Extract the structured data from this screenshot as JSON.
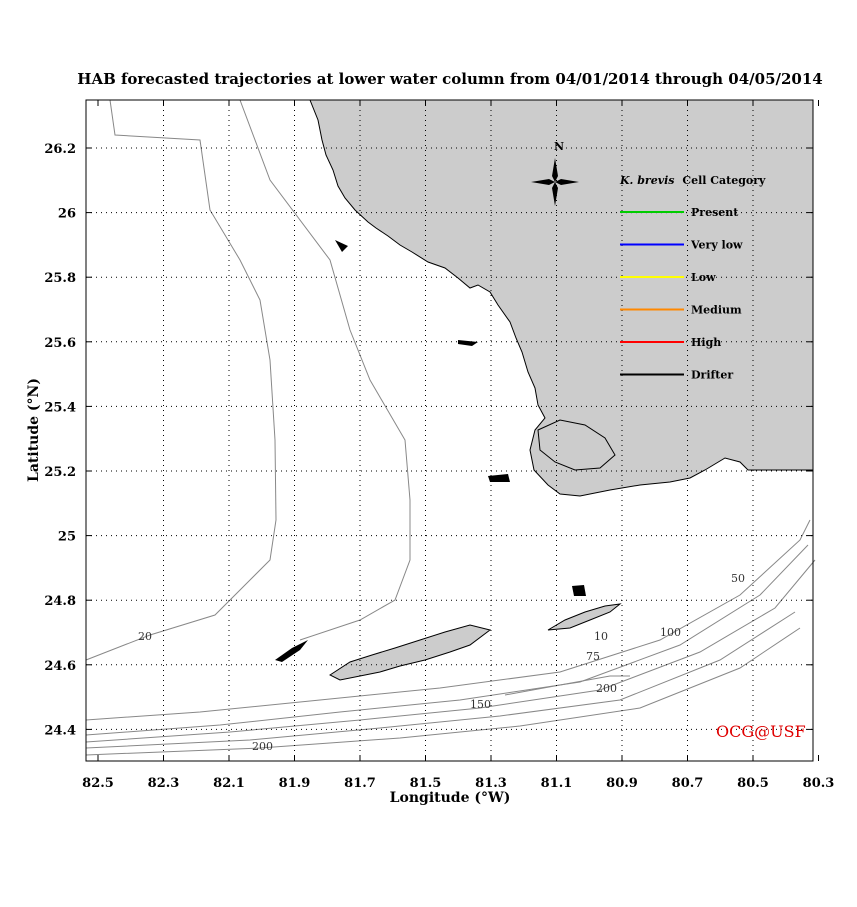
{
  "title": "HAB forecasted trajectories at lower water column from 04/01/2014 through 04/05/2014",
  "x_axis": {
    "label": "Longitude (°W)",
    "ticks": [
      "82.5",
      "82.3",
      "82.1",
      "81.9",
      "81.7",
      "81.5",
      "81.3",
      "81.1",
      "80.9",
      "80.7",
      "80.5",
      "80.3"
    ]
  },
  "y_axis": {
    "label": "Latitude (°N)",
    "ticks": [
      "26.2",
      "26",
      "25.8",
      "25.6",
      "25.4",
      "25.2",
      "25",
      "24.8",
      "24.6",
      "24.4"
    ]
  },
  "compass": {
    "label": "N"
  },
  "legend": {
    "title_italic": "K. brevis",
    "title_rest": "Cell Category",
    "items": [
      {
        "label": "Present",
        "color": "#00cc00"
      },
      {
        "label": "Very low",
        "color": "#0000ff"
      },
      {
        "label": "Low",
        "color": "#ffff00"
      },
      {
        "label": "Medium",
        "color": "#ff8800"
      },
      {
        "label": "High",
        "color": "#ff0000"
      },
      {
        "label": "Drifter",
        "color": "#000000"
      }
    ]
  },
  "isobaths": [
    "20",
    "10",
    "50",
    "75",
    "100",
    "150",
    "200",
    "200"
  ],
  "credit": "OCG@USF",
  "colors": {
    "land": "#cccccc",
    "grid": "#000000",
    "isobath": "#888888",
    "credit": "#e00000"
  }
}
